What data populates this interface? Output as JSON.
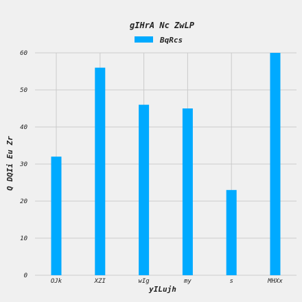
{
  "chart_data": {
    "type": "bar",
    "title": "gIHrA Nc ZwLP",
    "xlabel": "yILujh",
    "ylabel": "Q DQIi Eu Zr",
    "categories": [
      "OJk",
      "XZI",
      "wIg",
      "my",
      "s",
      "MHXx"
    ],
    "series": [
      {
        "name": "BqRcs",
        "values": [
          32,
          56,
          46,
          45,
          23,
          60
        ]
      }
    ],
    "ylim": [
      0,
      60
    ],
    "yticks": [
      0,
      10,
      20,
      30,
      40,
      50,
      60
    ],
    "grid": true,
    "legend_position": "top-center",
    "colors": {
      "bar": "#00aaff",
      "background": "#f0f0f0",
      "grid": "#cbcbcb"
    }
  }
}
